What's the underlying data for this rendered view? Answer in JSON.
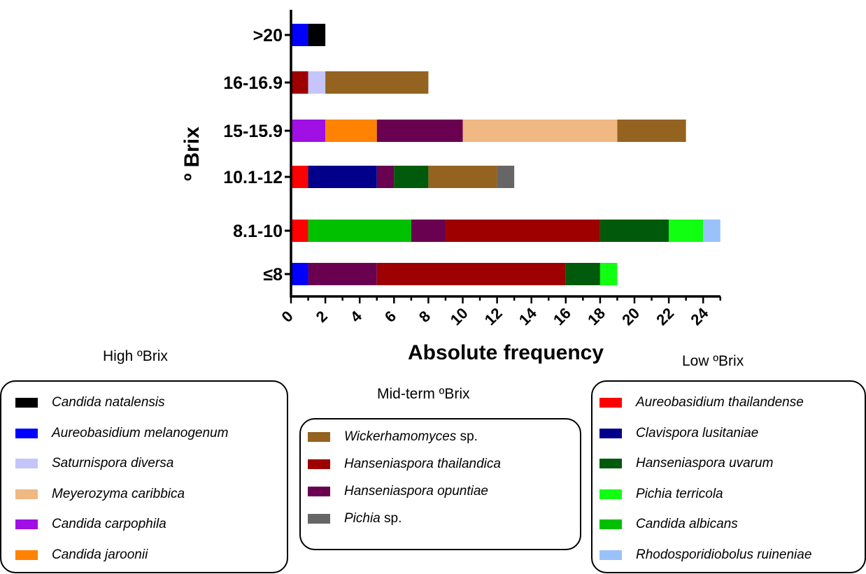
{
  "chart_data": {
    "type": "bar",
    "orientation": "horizontal",
    "stacked": true,
    "xlabel": "Absolute frequency",
    "ylabel": "º Brix",
    "xlim": [
      0,
      25
    ],
    "xticks": [
      "0",
      "2",
      "4",
      "6",
      "8",
      "10",
      "12",
      "14",
      "16",
      "18",
      "20",
      "22",
      "24"
    ],
    "categories": [
      "≤8",
      "8.1-10",
      "10.1-12",
      "15-15.9",
      "16-16.9",
      ">20"
    ],
    "series": [
      {
        "name": "Candida natalensis",
        "color": "#000000",
        "values": [
          0,
          0,
          0,
          0,
          0,
          1
        ]
      },
      {
        "name": "Aureobasidium melanogenum",
        "color": "#0000ff",
        "values": [
          1,
          0,
          0,
          0,
          0,
          1
        ]
      },
      {
        "name": "Saturnispora diversa",
        "color": "#c5c5fb",
        "values": [
          0,
          0,
          0,
          0,
          1,
          0
        ]
      },
      {
        "name": "Meyerozyma caribbica",
        "color": "#f0b882",
        "values": [
          0,
          0,
          0,
          9,
          0,
          0
        ]
      },
      {
        "name": "Candida carpophila",
        "color": "#a00fe3",
        "values": [
          0,
          0,
          0,
          2,
          0,
          0
        ]
      },
      {
        "name": "Candida jaroonii",
        "color": "#ff8200",
        "values": [
          0,
          0,
          0,
          3,
          0,
          0
        ]
      },
      {
        "name": "Wickerhamomyces sp.",
        "color": "#946320",
        "values": [
          0,
          0,
          4,
          4,
          6,
          0
        ]
      },
      {
        "name": "Hanseniaspora thailandica",
        "color": "#9e0000",
        "values": [
          11,
          9,
          0,
          0,
          1,
          0
        ]
      },
      {
        "name": "Hanseniaspora opuntiae",
        "color": "#6a0050",
        "values": [
          4,
          2,
          1,
          5,
          0,
          0
        ]
      },
      {
        "name": "Pichia sp.",
        "color": "#666666",
        "values": [
          0,
          0,
          1,
          0,
          0,
          0
        ]
      },
      {
        "name": "Aureobasidium thailandense",
        "color": "#ff0000",
        "values": [
          0,
          1,
          1,
          0,
          0,
          0
        ]
      },
      {
        "name": "Clavispora lusitaniae",
        "color": "#00008b",
        "values": [
          0,
          0,
          4,
          0,
          0,
          0
        ]
      },
      {
        "name": "Hanseniaspora uvarum",
        "color": "#005a0c",
        "values": [
          2,
          4,
          2,
          0,
          0,
          0
        ]
      },
      {
        "name": "Pichia terricola",
        "color": "#11ff11",
        "values": [
          1,
          2,
          0,
          0,
          0,
          0
        ]
      },
      {
        "name": "Candida albicans",
        "color": "#00c000",
        "values": [
          0,
          6,
          0,
          0,
          0,
          0
        ]
      },
      {
        "name": "Rhodosporidiobolus ruineniae",
        "color": "#99c2f8",
        "values": [
          0,
          1,
          0,
          0,
          0,
          0
        ]
      }
    ],
    "stack_order": [
      [
        "Aureobasidium melanogenum",
        "Hanseniaspora opuntiae",
        "Hanseniaspora thailandica",
        "Hanseniaspora uvarum",
        "Pichia terricola"
      ],
      [
        "Aureobasidium thailandense",
        "Candida albicans",
        "Hanseniaspora opuntiae",
        "Hanseniaspora thailandica",
        "Hanseniaspora uvarum",
        "Pichia terricola",
        "Rhodosporidiobolus ruineniae"
      ],
      [
        "Aureobasidium thailandense",
        "Clavispora lusitaniae",
        "Hanseniaspora opuntiae",
        "Hanseniaspora uvarum",
        "Wickerhamomyces sp.",
        "Pichia sp."
      ],
      [
        "Candida carpophila",
        "Candida jaroonii",
        "Hanseniaspora opuntiae",
        "Meyerozyma caribbica",
        "Wickerhamomyces sp."
      ],
      [
        "Hanseniaspora thailandica",
        "Saturnispora diversa",
        "Wickerhamomyces sp."
      ],
      [
        "Aureobasidium melanogenum",
        "Candida natalensis"
      ]
    ]
  },
  "legends": [
    {
      "heading": "High ºBrix",
      "items": [
        {
          "species": "Candida natalensis",
          "suffix": "",
          "color": "#000000"
        },
        {
          "species": "Aureobasidium melanogenum",
          "suffix": "",
          "color": "#0000ff"
        },
        {
          "species": "Saturnispora diversa",
          "suffix": "",
          "color": "#c5c5fb"
        },
        {
          "species": "Meyerozyma caribbica",
          "suffix": "",
          "color": "#f0b882"
        },
        {
          "species": "Candida carpophila",
          "suffix": "",
          "color": "#a00fe3"
        },
        {
          "species": "Candida jaroonii",
          "suffix": "",
          "color": "#ff8200"
        }
      ]
    },
    {
      "heading": "Mid-term ºBrix",
      "items": [
        {
          "species": "Wickerhamomyces",
          "suffix": " sp.",
          "color": "#946320"
        },
        {
          "species": "Hanseniaspora thailandica",
          "suffix": "",
          "color": "#9e0000"
        },
        {
          "species": "Hanseniaspora opuntiae",
          "suffix": "",
          "color": "#6a0050"
        },
        {
          "species": "Pichia",
          "suffix": " sp.",
          "color": "#666666"
        }
      ]
    },
    {
      "heading": "Low ºBrix",
      "items": [
        {
          "species": "Aureobasidium thailandense",
          "suffix": "",
          "color": "#ff0000"
        },
        {
          "species": "Clavispora lusitaniae",
          "suffix": "",
          "color": "#00008b"
        },
        {
          "species": "Hanseniaspora uvarum",
          "suffix": "",
          "color": "#005a0c"
        },
        {
          "species": "Pichia terricola",
          "suffix": "",
          "color": "#11ff11"
        },
        {
          "species": "Candida albicans",
          "suffix": "",
          "color": "#00c000"
        },
        {
          "species": "Rhodosporidiobolus ruineniae",
          "suffix": "",
          "color": "#99c2f8"
        }
      ]
    }
  ]
}
